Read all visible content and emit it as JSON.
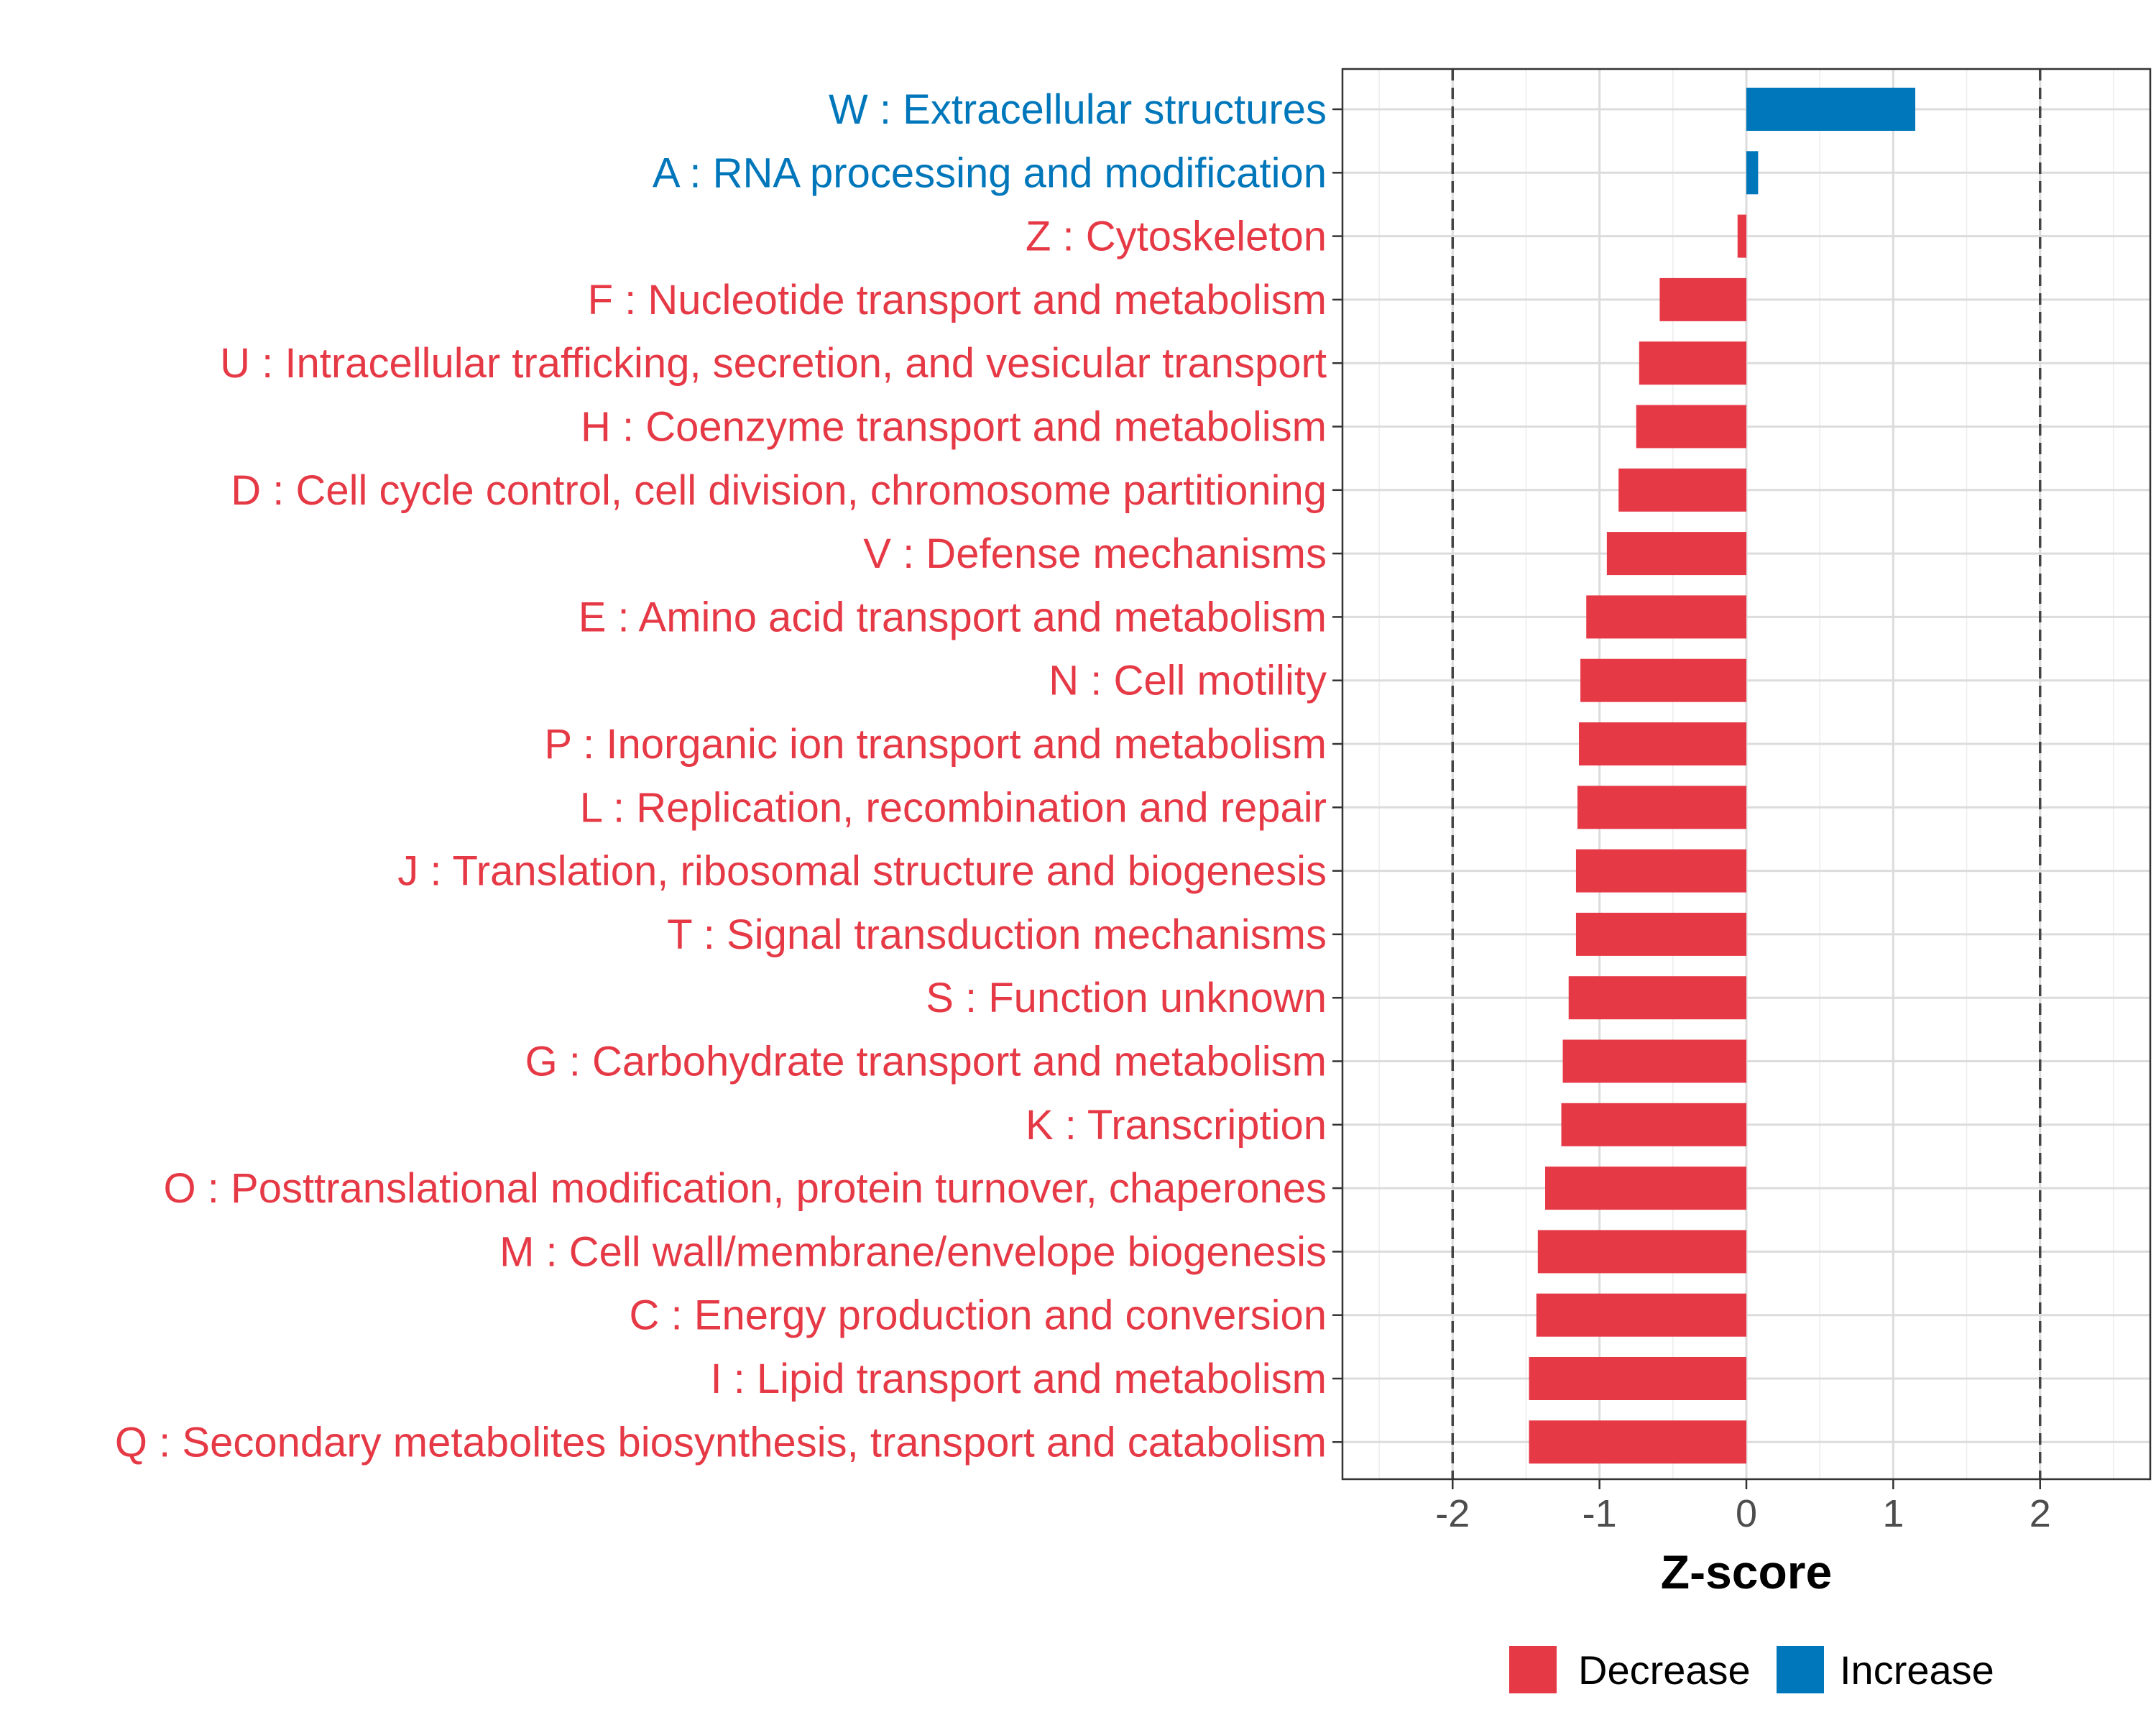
{
  "chart_data": {
    "type": "bar",
    "orientation": "horizontal",
    "xlabel": "Z-score",
    "xlim": [
      -2.75,
      2.75
    ],
    "xticks": [
      -2,
      -1,
      0,
      1,
      2
    ],
    "xtick_labels": [
      "-2",
      "-1",
      "0",
      "1",
      "2"
    ],
    "reference_lines": [
      -2,
      2
    ],
    "grid": true,
    "categories": [
      "W : Extracellular structures",
      "A : RNA processing and modification",
      "Z : Cytoskeleton",
      "F : Nucleotide transport and metabolism",
      "U : Intracellular trafficking, secretion, and vesicular transport",
      "H : Coenzyme transport and metabolism",
      "D : Cell cycle control, cell division, chromosome partitioning",
      "V : Defense mechanisms",
      "E : Amino acid transport and metabolism",
      "N : Cell motility",
      "P : Inorganic ion transport and metabolism",
      "L : Replication, recombination and repair",
      "J : Translation, ribosomal structure and biogenesis",
      "T : Signal transduction mechanisms",
      "S : Function unknown",
      "G : Carbohydrate transport and metabolism",
      "K : Transcription",
      "O : Posttranslational modification, protein turnover, chaperones",
      "M : Cell wall/membrane/envelope biogenesis",
      "C : Energy production and conversion",
      "I : Lipid transport and metabolism",
      "Q : Secondary metabolites biosynthesis, transport and catabolism"
    ],
    "values": [
      1.15,
      0.08,
      -0.06,
      -0.59,
      -0.73,
      -0.75,
      -0.87,
      -0.95,
      -1.09,
      -1.13,
      -1.14,
      -1.15,
      -1.16,
      -1.16,
      -1.21,
      -1.25,
      -1.26,
      -1.37,
      -1.42,
      -1.43,
      -1.48,
      -1.48
    ],
    "direction": [
      "Increase",
      "Increase",
      "Decrease",
      "Decrease",
      "Decrease",
      "Decrease",
      "Decrease",
      "Decrease",
      "Decrease",
      "Decrease",
      "Decrease",
      "Decrease",
      "Decrease",
      "Decrease",
      "Decrease",
      "Decrease",
      "Decrease",
      "Decrease",
      "Decrease",
      "Decrease",
      "Decrease",
      "Decrease"
    ],
    "legend": [
      {
        "label": "Decrease",
        "color": "#E63946"
      },
      {
        "label": "Increase",
        "color": "#0077BB"
      }
    ],
    "legend_position": "bottom"
  }
}
